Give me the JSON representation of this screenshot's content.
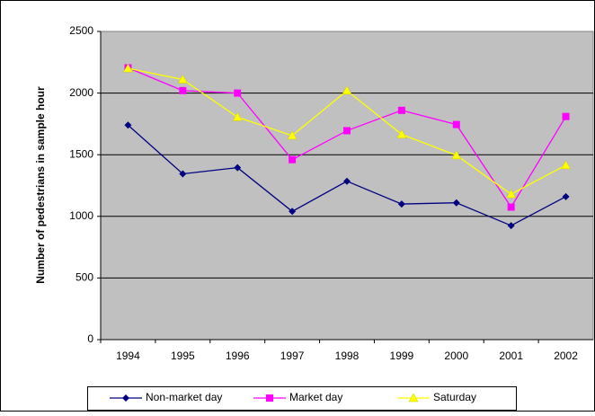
{
  "chart_data": {
    "type": "line",
    "y_label": "Number of pedestrians in sample hour",
    "categories": [
      "1994",
      "1995",
      "1996",
      "1997",
      "1998",
      "1999",
      "2000",
      "2001",
      "2002"
    ],
    "series": [
      {
        "name": "Non-market day",
        "color": "#000080",
        "marker": "diamond",
        "values": [
          1740,
          1345,
          1395,
          1040,
          1285,
          1100,
          1110,
          925,
          1160
        ]
      },
      {
        "name": "Market day",
        "color": "#ff00ff",
        "marker": "square",
        "values": [
          2205,
          2020,
          2000,
          1460,
          1695,
          1860,
          1745,
          1075,
          1810
        ]
      },
      {
        "name": "Saturday",
        "color": "#ffff00",
        "marker": "triangle",
        "values": [
          2200,
          2110,
          1805,
          1655,
          2020,
          1665,
          1495,
          1180,
          1415
        ]
      }
    ],
    "ylim": [
      0,
      2500
    ],
    "yticks": [
      0,
      500,
      1000,
      1500,
      2000,
      2500
    ],
    "grid": true,
    "legend": "bottom"
  }
}
